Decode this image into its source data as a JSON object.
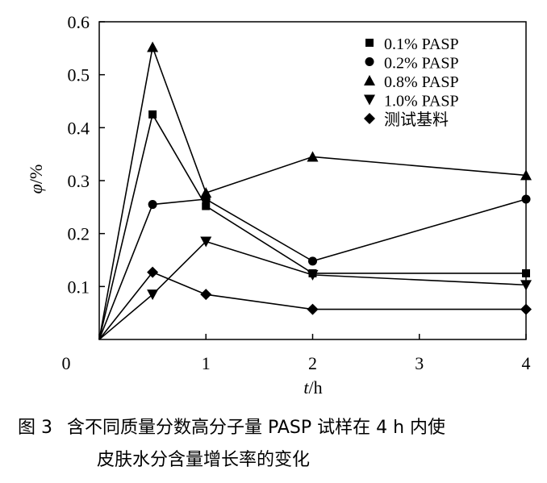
{
  "chart_data": {
    "type": "line",
    "xlabel_var": "t",
    "xlabel_unit": "/h",
    "ylabel_var": "φ",
    "ylabel_unit": "/%",
    "xlim": [
      0,
      4
    ],
    "ylim": [
      0,
      0.6
    ],
    "x_ticks": [
      0,
      1,
      2,
      3,
      4
    ],
    "x_tick_labels": [
      "0",
      "1",
      "2",
      "3",
      "4"
    ],
    "y_ticks": [
      0.1,
      0.2,
      0.3,
      0.4,
      0.5,
      0.6
    ],
    "y_tick_labels": [
      "0.1",
      "0.2",
      "0.3",
      "0.4",
      "0.5",
      "0.6"
    ],
    "grid": false,
    "legend_position": "top-right",
    "x": [
      0,
      0.5,
      1,
      2,
      4
    ],
    "series": [
      {
        "name": "0.1% PASP",
        "marker": "square",
        "values": [
          0,
          0.425,
          0.252,
          0.125,
          0.125
        ]
      },
      {
        "name": "0.2% PASP",
        "marker": "circle",
        "values": [
          0,
          0.255,
          0.265,
          0.148,
          0.265
        ]
      },
      {
        "name": "0.8% PASP",
        "marker": "triangle-up",
        "values": [
          0,
          0.552,
          0.277,
          0.345,
          0.31
        ]
      },
      {
        "name": "1.0% PASP",
        "marker": "triangle-down",
        "values": [
          0,
          0.085,
          0.185,
          0.122,
          0.103
        ]
      },
      {
        "name": "测试基料",
        "marker": "diamond",
        "values": [
          0,
          0.127,
          0.085,
          0.057,
          0.057
        ]
      }
    ]
  },
  "caption": {
    "number": "图 3",
    "line1": "含不同质量分数高分子量 PASP 试样在 4 h 内使",
    "line2": "皮肤水分含量增长率的变化"
  }
}
